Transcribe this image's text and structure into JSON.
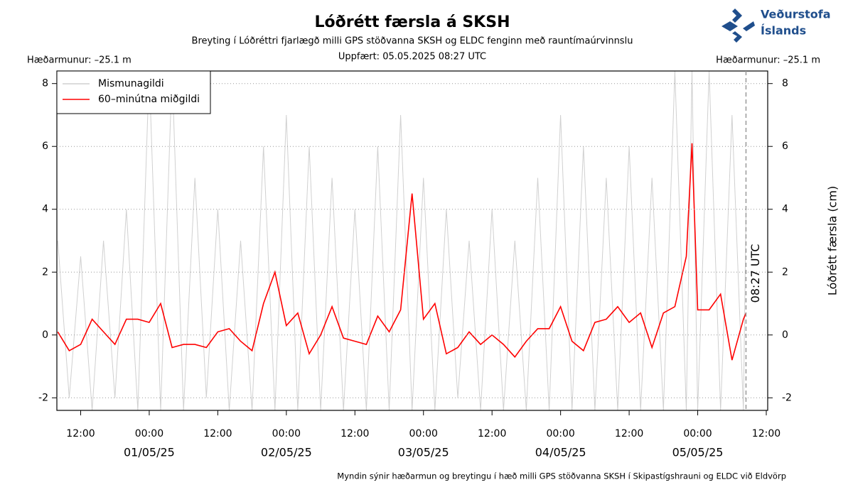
{
  "chart_data": {
    "type": "line",
    "title": "Lóðrétt færsla á SKSH",
    "subtitle": "Breyting í Lóðréttri fjarlægð milli GPS stöðvanna SKSH og ELDC fenginn með rauntímaúrvinnslu",
    "updated": "Uppfært: 05.05.2025 08:27 UTC",
    "height_difference": [
      "Hæðarmunur: –25.1 m",
      "Hæðarmunur: –25.1 m"
    ],
    "ylabel": "Lóðrétt færsla (cm)",
    "footer": "Myndin sýnir hæðarmun og breytingu í hæð milli GPS stöðvanna SKSH í Skipastígshrauni og ELDC við Eldvörp",
    "logo": [
      "Veðurstofa",
      "Íslands"
    ],
    "now_line": {
      "x": "2025-05-05 08:27",
      "label": "08:27 UTC"
    },
    "legend": "upper left",
    "xlim": [
      "2025-04-30 07:50",
      "2025-05-05 12:15"
    ],
    "xticks": [
      {
        "value": "2025-04-30 12:00",
        "label": "12:00"
      },
      {
        "value": "2025-05-01 00:00",
        "label": "00:00"
      },
      {
        "value": "2025-05-01 12:00",
        "label": "12:00"
      },
      {
        "value": "2025-05-02 00:00",
        "label": "00:00"
      },
      {
        "value": "2025-05-02 12:00",
        "label": "12:00"
      },
      {
        "value": "2025-05-03 00:00",
        "label": "00:00"
      },
      {
        "value": "2025-05-03 12:00",
        "label": "12:00"
      },
      {
        "value": "2025-05-04 00:00",
        "label": "00:00"
      },
      {
        "value": "2025-05-04 12:00",
        "label": "12:00"
      },
      {
        "value": "2025-05-05 00:00",
        "label": "00:00"
      },
      {
        "value": "2025-05-05 12:00",
        "label": "12:00"
      }
    ],
    "xday_labels": [
      {
        "value": "2025-05-01 00:00",
        "label": "01/05/25"
      },
      {
        "value": "2025-05-02 00:00",
        "label": "02/05/25"
      },
      {
        "value": "2025-05-03 00:00",
        "label": "03/05/25"
      },
      {
        "value": "2025-05-04 00:00",
        "label": "04/05/25"
      },
      {
        "value": "2025-05-05 00:00",
        "label": "05/05/25"
      }
    ],
    "ylim": [
      -2.4,
      8.4
    ],
    "yticks": [
      -2,
      0,
      2,
      4,
      6,
      8
    ],
    "y2lim": [
      -2.4,
      8.4
    ],
    "y2ticks": [
      -2,
      0,
      2,
      4,
      6,
      8
    ],
    "x": [
      "2025-04-30 08:00",
      "2025-04-30 10:00",
      "2025-04-30 12:00",
      "2025-04-30 14:00",
      "2025-04-30 16:00",
      "2025-04-30 18:00",
      "2025-04-30 20:00",
      "2025-04-30 22:00",
      "2025-05-01 00:00",
      "2025-05-01 02:00",
      "2025-05-01 04:00",
      "2025-05-01 06:00",
      "2025-05-01 08:00",
      "2025-05-01 10:00",
      "2025-05-01 12:00",
      "2025-05-01 14:00",
      "2025-05-01 16:00",
      "2025-05-01 18:00",
      "2025-05-01 20:00",
      "2025-05-01 22:00",
      "2025-05-02 00:00",
      "2025-05-02 02:00",
      "2025-05-02 04:00",
      "2025-05-02 06:00",
      "2025-05-02 08:00",
      "2025-05-02 10:00",
      "2025-05-02 12:00",
      "2025-05-02 14:00",
      "2025-05-02 16:00",
      "2025-05-02 18:00",
      "2025-05-02 20:00",
      "2025-05-02 22:00",
      "2025-05-03 00:00",
      "2025-05-03 02:00",
      "2025-05-03 04:00",
      "2025-05-03 06:00",
      "2025-05-03 08:00",
      "2025-05-03 10:00",
      "2025-05-03 12:00",
      "2025-05-03 14:00",
      "2025-05-03 16:00",
      "2025-05-03 18:00",
      "2025-05-03 20:00",
      "2025-05-03 22:00",
      "2025-05-04 00:00",
      "2025-05-04 02:00",
      "2025-05-04 04:00",
      "2025-05-04 06:00",
      "2025-05-04 08:00",
      "2025-05-04 10:00",
      "2025-05-04 12:00",
      "2025-05-04 14:00",
      "2025-05-04 16:00",
      "2025-05-04 18:00",
      "2025-05-04 20:00",
      "2025-05-04 22:00",
      "2025-05-04 23:00",
      "2025-05-05 00:00",
      "2025-05-05 02:00",
      "2025-05-05 04:00",
      "2025-05-05 06:00",
      "2025-05-05 08:00",
      "2025-05-05 08:27"
    ],
    "series": [
      {
        "name": "Mismunagildi",
        "color": "#d0d0d0",
        "values": [
          3,
          -2,
          2.5,
          -2.4,
          3,
          -2,
          4,
          -2.4,
          8.4,
          -2.4,
          8.4,
          -2.4,
          5,
          -2,
          4,
          -2.4,
          3,
          -2.4,
          6,
          -2.4,
          7,
          -2.4,
          6,
          -2.4,
          5,
          -2.4,
          4,
          -2.4,
          6,
          -2.4,
          7,
          -2.4,
          5,
          -2.4,
          4,
          -2,
          3,
          -2.4,
          4,
          -2.4,
          3,
          -2.4,
          5,
          -2.4,
          7,
          -2.4,
          6,
          -2.4,
          5,
          -2.4,
          6,
          -2.4,
          5,
          -2.4,
          8.4,
          -2.4,
          8.4,
          -2.4,
          8.4,
          -2.4,
          7,
          -2.4,
          4
        ]
      },
      {
        "name": "60–minútna miðgildi",
        "color": "#ff0000",
        "values": [
          0.1,
          -0.5,
          -0.3,
          0.5,
          0.1,
          -0.3,
          0.5,
          0.5,
          0.4,
          1.0,
          -0.4,
          -0.3,
          -0.3,
          -0.4,
          0.1,
          0.2,
          -0.2,
          -0.5,
          1.0,
          2.0,
          0.3,
          0.7,
          -0.6,
          0.0,
          0.9,
          -0.1,
          -0.2,
          -0.3,
          0.6,
          0.1,
          0.8,
          4.5,
          0.5,
          1.0,
          -0.6,
          -0.4,
          0.1,
          -0.3,
          0.0,
          -0.3,
          -0.7,
          -0.2,
          0.2,
          0.2,
          0.9,
          -0.2,
          -0.5,
          0.4,
          0.5,
          0.9,
          0.4,
          0.7,
          -0.4,
          0.7,
          0.9,
          2.5,
          6.1,
          0.8,
          0.8,
          1.3,
          -0.8,
          0.5,
          0.7
        ]
      }
    ]
  }
}
